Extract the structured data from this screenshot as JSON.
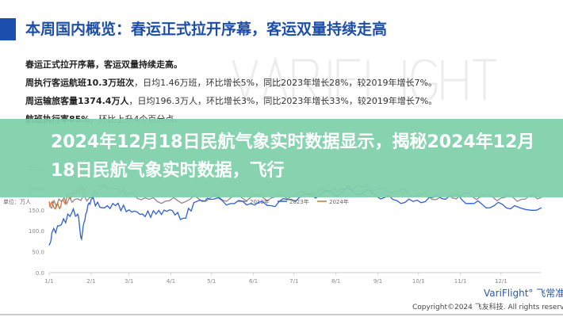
{
  "header": {
    "title": "本周国内概览：春运正式拉开序幕，客运双量持续走高",
    "watermark": "VARIFLIGHT"
  },
  "summary": [
    {
      "bold": "春运正式拉开序幕，客运双量持续走高。",
      "rest": ""
    },
    {
      "bold": "周执行客运航班10.3万班次",
      "rest": "，日均1.46万班，环比增长5%，同比2023年增长28%，较2019年增长7%。"
    },
    {
      "bold": "周运输旅客量1374.4万人",
      "rest": "，日均196.3万人，环比增长3%，同比2023年增长33%，较2019年增长7%。"
    },
    {
      "bold": "航班执行率85%",
      "rest": "，环比上升4个百分点。"
    }
  ],
  "overlay_title": "2024年12月18日民航气象实时数据显示，揭秘2024年12月18日民航气象实时数据，飞行",
  "footer": {
    "logo": "VariFlight° 飞常准",
    "copyright": "Copyright©2024 飞友科技. All rights reserved."
  },
  "colors": {
    "accent": "#1c4fb0",
    "overlay": "#7ed0aa",
    "s2019": "#8a8a8a",
    "s2023": "#2f5fd0",
    "s2024": "#d2703a"
  },
  "chart_data": {
    "type": "line",
    "ylabel": "单位：万人",
    "ylim": [
      0,
      250
    ],
    "yticks": [
      "0.0",
      "50.0",
      "100.0",
      "150.0",
      "200.0",
      "250.0"
    ],
    "xticks": [
      "1/1",
      "2/1",
      "3/1",
      "4/1",
      "5/1",
      "6/1",
      "7/1",
      "8/1",
      "9/1",
      "10/1",
      "11/1",
      "12/1"
    ],
    "grid": false,
    "legend_placement": "top",
    "series": [
      {
        "name": "2019年",
        "color": "#8a8a8a",
        "x": [
          1,
          10,
          20,
          31,
          40,
          50,
          60,
          75,
          90,
          105,
          120,
          135,
          150,
          165,
          180,
          195,
          210,
          220,
          232,
          245,
          260,
          275,
          290,
          305,
          320,
          335,
          350,
          365
        ],
        "values": [
          160,
          170,
          175,
          180,
          205,
          200,
          190,
          175,
          172,
          175,
          178,
          178,
          180,
          178,
          182,
          190,
          195,
          200,
          205,
          200,
          195,
          185,
          180,
          185,
          182,
          178,
          175,
          180
        ]
      },
      {
        "name": "2023年",
        "color": "#2f5fd0",
        "x": [
          1,
          3,
          10,
          18,
          22,
          25,
          28,
          32,
          40,
          50,
          60,
          70,
          80,
          90,
          100,
          110,
          120,
          135,
          150,
          165,
          180,
          195,
          210,
          225,
          240,
          255,
          270,
          285,
          300,
          315,
          330,
          345,
          365
        ],
        "values": [
          65,
          95,
          115,
          145,
          140,
          80,
          140,
          175,
          155,
          160,
          150,
          140,
          140,
          150,
          130,
          170,
          175,
          165,
          165,
          160,
          175,
          185,
          190,
          195,
          190,
          175,
          170,
          180,
          185,
          165,
          160,
          160,
          155
        ]
      },
      {
        "name": "2024年",
        "color": "#d2703a",
        "x": [
          1,
          4,
          8,
          12,
          16,
          20,
          24,
          28
        ],
        "values": [
          170,
          160,
          158,
          170,
          180,
          190,
          198,
          202
        ]
      }
    ]
  }
}
